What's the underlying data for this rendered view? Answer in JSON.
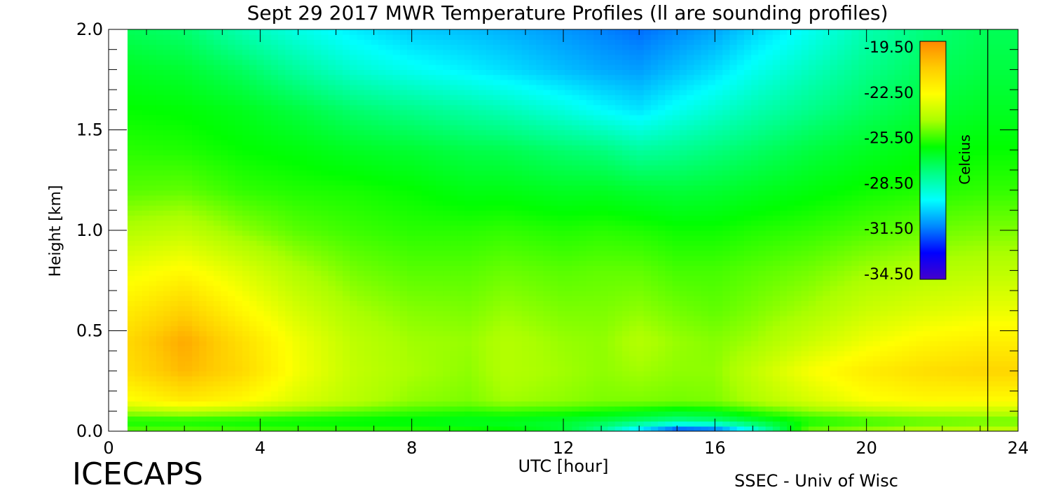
{
  "chart_data": {
    "type": "heatmap",
    "title": "Sept 29 2017 MWR Temperature Profiles (ll are sounding profiles)",
    "xlabel": "UTC [hour]",
    "ylabel": "Height [km]",
    "xlim": [
      0,
      24
    ],
    "ylim": [
      0,
      2.0
    ],
    "x_ticks": [
      "0",
      "4",
      "8",
      "12",
      "16",
      "20",
      "24"
    ],
    "y_ticks": [
      "0.0",
      "0.5",
      "1.0",
      "1.5",
      "2.0"
    ],
    "colorbar": {
      "label": "Celcius",
      "ticks": [
        "-19.50",
        "-22.50",
        "-25.50",
        "-28.50",
        "-31.50",
        "-34.50"
      ],
      "range": [
        -35.5,
        -19.0
      ],
      "colors": [
        "#4400cc",
        "#0000ff",
        "#0088ff",
        "#00ffff",
        "#00ff88",
        "#00ff00",
        "#aaff00",
        "#ffff00",
        "#ffcc00",
        "#ff8800"
      ]
    },
    "x": [
      0.5,
      2,
      3.5,
      5,
      6.5,
      8,
      9.5,
      10.5,
      12,
      13,
      14,
      15,
      16,
      17,
      18.5,
      20,
      21.5,
      23.2
    ],
    "y": [
      0.0,
      0.05,
      0.15,
      0.3,
      0.45,
      0.6,
      0.8,
      1.0,
      1.2,
      1.4,
      1.6,
      1.8,
      2.0
    ],
    "z": [
      [
        -25.3,
        -25.3,
        -25.5,
        -25.6,
        -25.7,
        -25.8,
        -26.0,
        -26.2,
        -27.0,
        -28.5,
        -31.0,
        -33.5,
        -33.0,
        -30.0,
        -25.0,
        -24.5,
        -24.0,
        -23.8
      ],
      [
        -26.2,
        -26.2,
        -26.3,
        -26.4,
        -26.5,
        -26.6,
        -26.8,
        -26.8,
        -27.0,
        -27.3,
        -27.8,
        -28.3,
        -28.0,
        -27.2,
        -26.2,
        -25.8,
        -25.5,
        -25.3
      ],
      [
        -22.8,
        -22.0,
        -22.5,
        -23.5,
        -24.2,
        -24.8,
        -25.0,
        -24.6,
        -24.8,
        -25.0,
        -25.0,
        -25.1,
        -25.0,
        -24.4,
        -23.6,
        -22.8,
        -22.5,
        -22.6
      ],
      [
        -21.5,
        -20.3,
        -21.3,
        -22.9,
        -24.0,
        -24.5,
        -24.8,
        -24.3,
        -24.6,
        -24.8,
        -24.6,
        -24.8,
        -24.8,
        -24.0,
        -22.8,
        -22.0,
        -21.5,
        -21.2
      ],
      [
        -21.3,
        -19.9,
        -21.5,
        -23.0,
        -24.1,
        -24.6,
        -24.7,
        -24.3,
        -24.7,
        -24.8,
        -24.3,
        -24.7,
        -24.9,
        -24.6,
        -23.8,
        -23.0,
        -22.4,
        -22.1
      ],
      [
        -22.0,
        -21.0,
        -22.4,
        -23.6,
        -24.5,
        -24.9,
        -25.0,
        -24.7,
        -25.0,
        -25.0,
        -24.8,
        -25.1,
        -25.3,
        -25.0,
        -24.5,
        -23.8,
        -23.4,
        -23.1
      ],
      [
        -23.0,
        -22.5,
        -23.4,
        -24.4,
        -25.1,
        -25.4,
        -25.4,
        -25.2,
        -25.4,
        -25.3,
        -25.3,
        -25.6,
        -25.6,
        -25.4,
        -25.1,
        -24.6,
        -24.3,
        -24.1
      ],
      [
        -24.3,
        -24.0,
        -24.8,
        -25.4,
        -25.7,
        -25.9,
        -25.9,
        -25.8,
        -26.0,
        -25.9,
        -26.0,
        -26.2,
        -26.2,
        -26.0,
        -25.8,
        -25.5,
        -25.2,
        -25.0
      ],
      [
        -25.4,
        -25.3,
        -25.8,
        -26.0,
        -26.1,
        -26.3,
        -26.6,
        -26.6,
        -26.8,
        -26.8,
        -27.0,
        -27.1,
        -27.0,
        -26.8,
        -26.5,
        -26.2,
        -26.0,
        -25.8
      ],
      [
        -25.9,
        -26.0,
        -26.3,
        -26.5,
        -26.8,
        -27.0,
        -27.3,
        -27.4,
        -27.8,
        -28.0,
        -28.5,
        -28.3,
        -28.0,
        -27.7,
        -27.2,
        -26.8,
        -26.5,
        -26.3
      ],
      [
        -26.3,
        -26.4,
        -26.7,
        -27.2,
        -27.8,
        -28.2,
        -28.6,
        -28.9,
        -29.5,
        -30.0,
        -30.4,
        -29.8,
        -29.3,
        -28.8,
        -28.2,
        -27.6,
        -27.1,
        -26.8
      ],
      [
        -26.8,
        -27.0,
        -27.6,
        -28.5,
        -29.3,
        -29.8,
        -30.2,
        -30.5,
        -31.0,
        -31.3,
        -31.5,
        -31.0,
        -30.5,
        -29.8,
        -29.0,
        -28.2,
        -27.6,
        -27.2
      ],
      [
        -27.5,
        -27.8,
        -28.8,
        -29.6,
        -30.3,
        -30.8,
        -31.0,
        -31.2,
        -31.6,
        -31.9,
        -32.2,
        -31.8,
        -31.4,
        -30.7,
        -29.8,
        -28.8,
        -28.0,
        -27.5
      ]
    ],
    "sounding_lines_at": [
      23.2
    ],
    "grid": false
  },
  "footer": {
    "left_label": "ICECAPS",
    "right_label": "SSEC - Univ of Wisc"
  }
}
